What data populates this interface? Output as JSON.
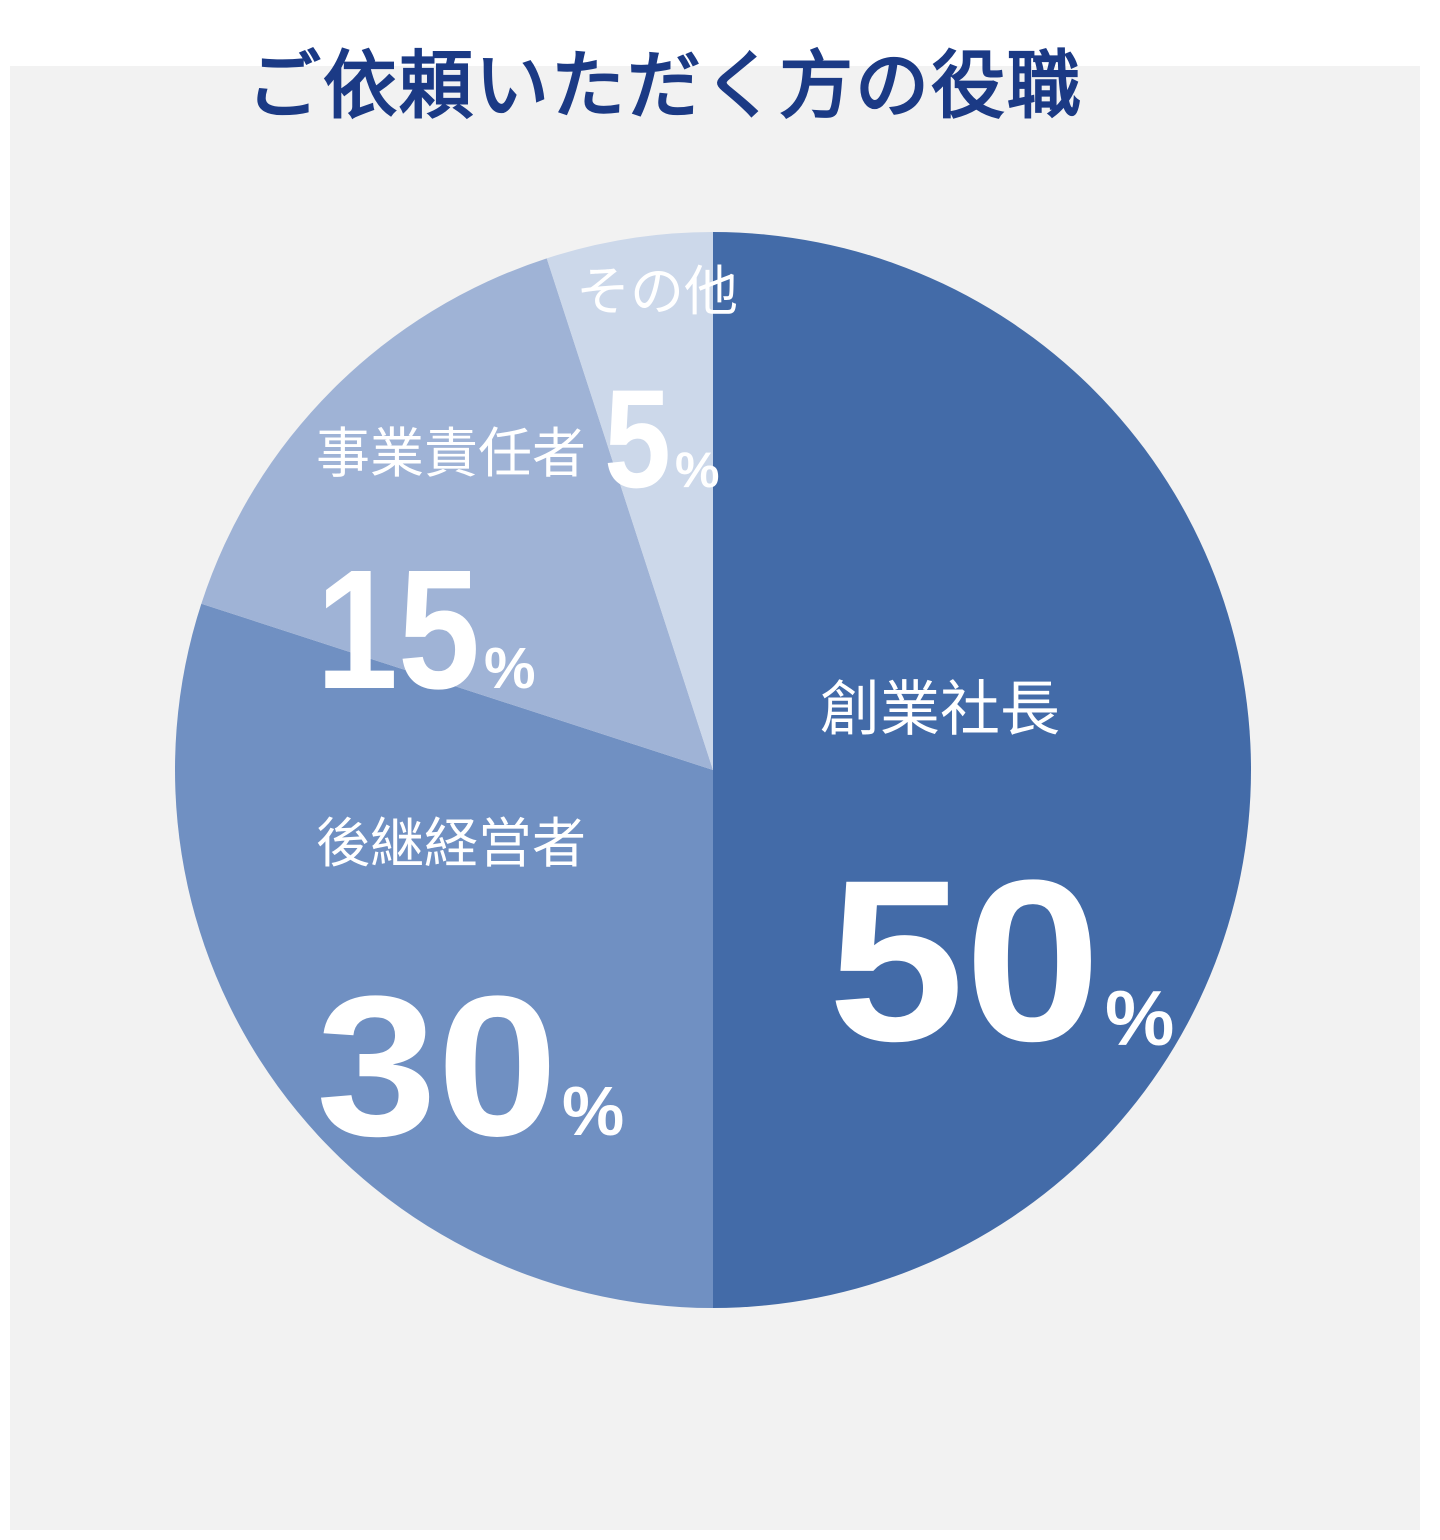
{
  "title": "ご依頼いただく方の役職",
  "colors": {
    "background": "#f2f2f2",
    "title": "#1b3a85",
    "text": "#ffffff"
  },
  "chart_data": {
    "type": "pie",
    "title": "ご依頼いただく方の役職",
    "unit": "%",
    "start_angle": "12 o'clock, clockwise",
    "slices": [
      {
        "label": "創業社長",
        "value": 50,
        "value_label": "50",
        "color": "#436ba8"
      },
      {
        "label": "後継経営者",
        "value": 30,
        "value_label": "30",
        "color": "#7090c2"
      },
      {
        "label": "事業責任者",
        "value": 15,
        "value_label": "15",
        "color": "#9fb3d6"
      },
      {
        "label": "その他",
        "value": 5,
        "value_label": "5",
        "color": "#ccd8ea"
      }
    ]
  }
}
